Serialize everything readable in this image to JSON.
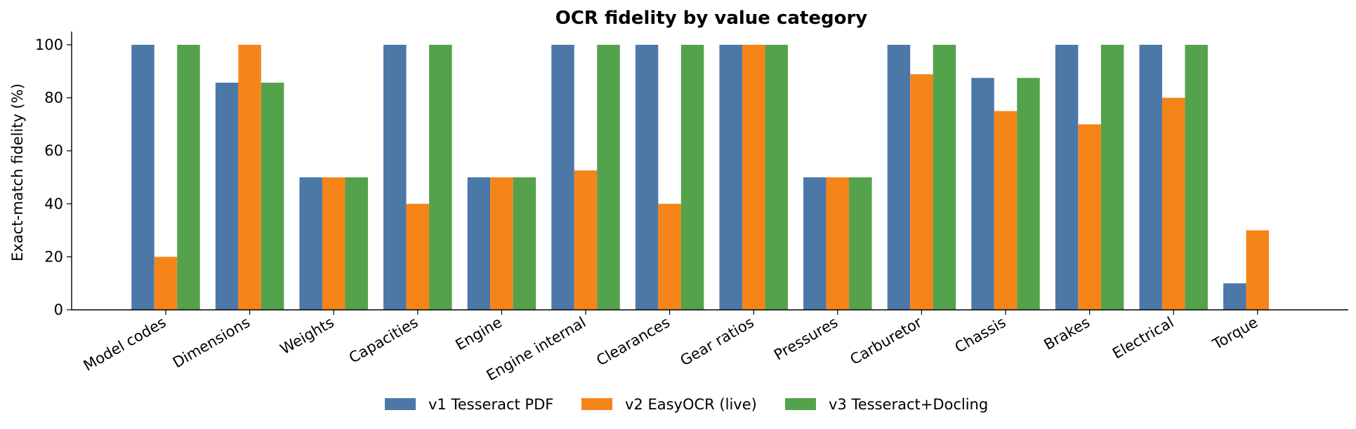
{
  "chart_data": {
    "type": "bar",
    "title": "OCR fidelity by value category",
    "xlabel": "",
    "ylabel": "Exact-match fidelity (%)",
    "ylim": [
      0,
      105
    ],
    "yticks": [
      0,
      20,
      40,
      60,
      80,
      100
    ],
    "grid": false,
    "legend_position": "bottom-center",
    "categories": [
      "Model codes",
      "Dimensions",
      "Weights",
      "Capacities",
      "Engine",
      "Engine internal",
      "Clearances",
      "Gear ratios",
      "Pressures",
      "Carburetor",
      "Chassis",
      "Brakes",
      "Electrical",
      "Torque"
    ],
    "series": [
      {
        "name": "v1 Tesseract PDF",
        "color": "#4c78a8",
        "values": [
          100,
          85.7,
          50,
          100,
          50,
          100,
          100,
          100,
          50,
          100,
          87.5,
          100,
          100,
          10
        ]
      },
      {
        "name": "v2 EasyOCR (live)",
        "color": "#f58518",
        "values": [
          20,
          100,
          50,
          40,
          50,
          52.6,
          40,
          100,
          50,
          88.9,
          75,
          70,
          80,
          30
        ]
      },
      {
        "name": "v3 Tesseract+Docling",
        "color": "#54a24b",
        "values": [
          100,
          85.7,
          50,
          100,
          50,
          100,
          100,
          100,
          50,
          100,
          87.5,
          100,
          100,
          null
        ]
      }
    ]
  }
}
